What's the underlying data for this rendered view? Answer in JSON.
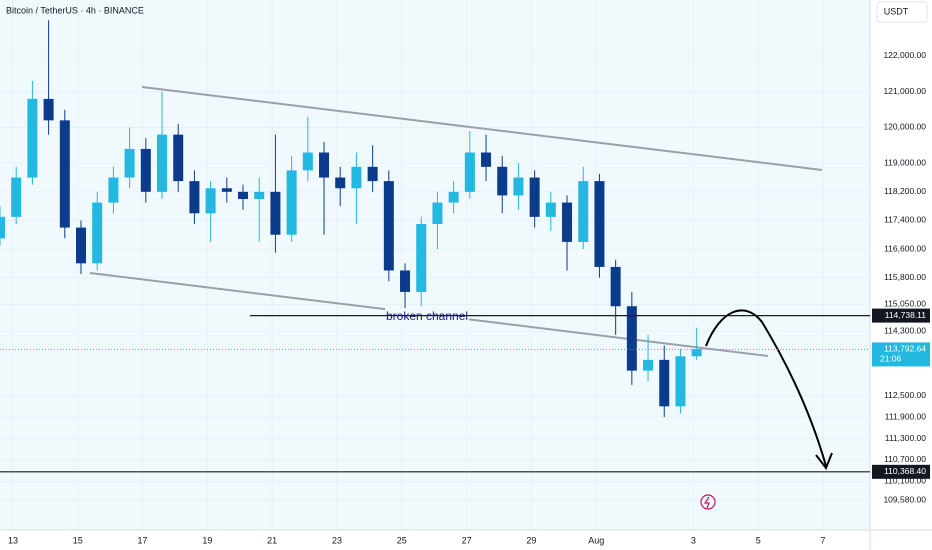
{
  "chart_data": {
    "type": "candlestick",
    "title": "Bitcoin / TetherUS · 4h · BINANCE",
    "currency": "USDT",
    "annotation": "broken channel",
    "up_color": "#22b8e0",
    "down_color": "#0d3b8c",
    "xlim": [
      -0.4,
      26.45
    ],
    "xticks": [
      {
        "value": 0,
        "label": "13"
      },
      {
        "value": 2,
        "label": "15"
      },
      {
        "value": 4,
        "label": "17"
      },
      {
        "value": 6,
        "label": "19"
      },
      {
        "value": 8,
        "label": "21"
      },
      {
        "value": 10,
        "label": "23"
      },
      {
        "value": 12,
        "label": "25"
      },
      {
        "value": 14,
        "label": "27"
      },
      {
        "value": 16,
        "label": "29"
      },
      {
        "value": 18,
        "label": "Aug"
      },
      {
        "value": 21,
        "label": "3"
      },
      {
        "value": 23,
        "label": "5"
      },
      {
        "value": 25,
        "label": "7"
      }
    ],
    "ylim": [
      108741,
      123566
    ],
    "yticks": [
      {
        "value": 122000,
        "label": "122,000.00"
      },
      {
        "value": 121000,
        "label": "121,000.00"
      },
      {
        "value": 120000,
        "label": "120,000.00"
      },
      {
        "value": 119000,
        "label": "119,000.00"
      },
      {
        "value": 118200,
        "label": "118,200.00"
      },
      {
        "value": 117400,
        "label": "117,400.00"
      },
      {
        "value": 116600,
        "label": "116,600.00"
      },
      {
        "value": 115800,
        "label": "115,800.00"
      },
      {
        "value": 115050,
        "label": "115,050.00"
      },
      {
        "value": 114300,
        "label": "114,300.00"
      },
      {
        "value": 112500,
        "label": "112,500.00"
      },
      {
        "value": 111900,
        "label": "111,900.00"
      },
      {
        "value": 111300,
        "label": "111,300.00"
      },
      {
        "value": 110700,
        "label": "110,700.00"
      },
      {
        "value": 110100,
        "label": "110,100.00"
      },
      {
        "value": 109580,
        "label": "109,580.00"
      }
    ],
    "levels": [
      {
        "value": 114738.11,
        "label": "114,738.11"
      },
      {
        "value": 110368.4,
        "label": "110,368.40"
      }
    ],
    "last_price": {
      "value": 113792.64,
      "label": "113,792.64",
      "countdown": "21:06"
    },
    "x": [
      -0.4,
      0.1,
      0.6,
      1.1,
      1.6,
      2.1,
      2.6,
      3.1,
      3.6,
      4.1,
      4.6,
      5.1,
      5.6,
      6.1,
      6.6,
      7.1,
      7.6,
      8.1,
      8.6,
      9.1,
      9.6,
      10.1,
      10.6,
      11.1,
      11.6,
      12.1,
      12.6,
      13.1,
      13.6,
      14.1,
      14.6,
      15.1,
      15.6,
      16.1,
      16.6,
      17.1,
      17.6,
      18.1,
      18.6,
      19.1,
      19.6,
      20.1,
      20.6,
      21.1
    ],
    "open": [
      116900,
      117500,
      118600,
      120800,
      120200,
      117200,
      116200,
      117900,
      118600,
      119400,
      118200,
      119800,
      118500,
      117600,
      118300,
      118200,
      118000,
      118200,
      117000,
      118800,
      119300,
      118600,
      118300,
      118900,
      118500,
      116000,
      115400,
      117300,
      117900,
      118200,
      119300,
      118900,
      118100,
      118600,
      117500,
      117900,
      116800,
      118500,
      116100,
      115000,
      113200,
      113500,
      112200,
      113600
    ],
    "high": [
      117800,
      118900,
      121300,
      123000,
      120500,
      117400,
      118200,
      118900,
      120000,
      119700,
      121000,
      120100,
      118800,
      118500,
      118600,
      118400,
      118600,
      119800,
      119200,
      120300,
      119600,
      118900,
      119300,
      119500,
      118800,
      116200,
      117500,
      118200,
      118500,
      119900,
      119800,
      119200,
      119000,
      118800,
      118200,
      118100,
      118900,
      118700,
      116300,
      115400,
      114200,
      113900,
      113800,
      114400
    ],
    "low": [
      116700,
      117300,
      118400,
      119800,
      116900,
      115900,
      116000,
      117600,
      118300,
      117900,
      118000,
      118200,
      117300,
      116800,
      117900,
      117700,
      116800,
      116500,
      116800,
      118500,
      117000,
      117800,
      117300,
      118200,
      115700,
      114900,
      115000,
      116600,
      117600,
      118000,
      118500,
      117600,
      117700,
      117200,
      117100,
      116000,
      116600,
      115800,
      114200,
      112800,
      112900,
      111900,
      112000,
      113500
    ],
    "close": [
      117500,
      118600,
      120800,
      120200,
      117200,
      116200,
      117900,
      118600,
      119400,
      118200,
      119800,
      118500,
      117600,
      118300,
      118200,
      118000,
      118200,
      117000,
      118800,
      119300,
      118600,
      118300,
      118900,
      118500,
      116000,
      115400,
      117300,
      117900,
      118200,
      119300,
      118900,
      118100,
      118600,
      117500,
      117900,
      116800,
      118500,
      116100,
      115000,
      113200,
      113500,
      112200,
      113600,
      113800
    ]
  }
}
